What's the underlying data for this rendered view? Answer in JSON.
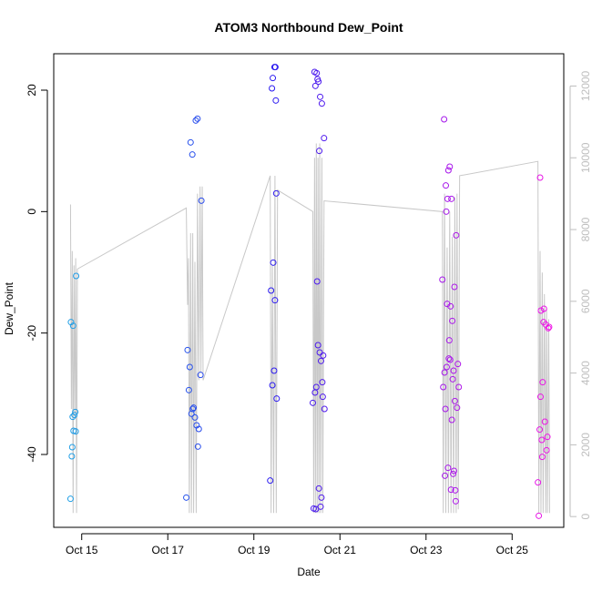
{
  "chart_data": {
    "type": "scatter",
    "title": "ATOM3 Northbound Dew_Point",
    "xlabel": "Date",
    "ylabel": "Dew_Point",
    "y2label": "",
    "xlim": [
      14.35,
      26.2
    ],
    "ylim": [
      -52,
      26
    ],
    "y2lim": [
      -300,
      12900
    ],
    "x_ticks": [
      {
        "value": 15,
        "label": "Oct 15"
      },
      {
        "value": 17,
        "label": "Oct 17"
      },
      {
        "value": 19,
        "label": "Oct 19"
      },
      {
        "value": 21,
        "label": "Oct 21"
      },
      {
        "value": 23,
        "label": "Oct 23"
      },
      {
        "value": 25,
        "label": "Oct 25"
      }
    ],
    "y_ticks": [
      -40,
      -20,
      0,
      20
    ],
    "y2_ticks": [
      0,
      2000,
      4000,
      6000,
      8000,
      10000,
      12000
    ],
    "colors": {
      "points_start": "#1fa0e6",
      "points_mid": "#2a1af0",
      "points_end": "#f014e6",
      "line": "#c8c8c8",
      "y2_axis": "#bebebe",
      "frame": "#000000"
    },
    "series": [
      {
        "name": "Dew_Point",
        "type": "scatter",
        "axis": "left",
        "points": [
          [
            14.74,
            -47.3
          ],
          [
            14.75,
            -18.2
          ],
          [
            14.77,
            -40.3
          ],
          [
            14.78,
            -38.8
          ],
          [
            14.79,
            -33.8
          ],
          [
            14.8,
            -18.8
          ],
          [
            14.81,
            -36.1
          ],
          [
            14.83,
            -33.5
          ],
          [
            14.85,
            -33.0
          ],
          [
            14.86,
            -36.2
          ],
          [
            14.87,
            -10.6
          ],
          [
            17.43,
            -47.1
          ],
          [
            17.46,
            -22.8
          ],
          [
            17.49,
            -29.4
          ],
          [
            17.51,
            -25.6
          ],
          [
            17.53,
            11.4
          ],
          [
            17.55,
            -33.3
          ],
          [
            17.57,
            9.4
          ],
          [
            17.58,
            -32.5
          ],
          [
            17.6,
            -32.3
          ],
          [
            17.63,
            -33.9
          ],
          [
            17.65,
            15.0
          ],
          [
            17.67,
            -35.2
          ],
          [
            17.69,
            15.3
          ],
          [
            17.7,
            -38.7
          ],
          [
            17.72,
            -35.8
          ],
          [
            17.76,
            -26.9
          ],
          [
            17.78,
            1.8
          ],
          [
            19.38,
            -44.3
          ],
          [
            19.4,
            -13.0
          ],
          [
            19.42,
            20.3
          ],
          [
            19.43,
            -28.6
          ],
          [
            19.44,
            22.0
          ],
          [
            19.45,
            -8.4
          ],
          [
            19.47,
            -26.2
          ],
          [
            19.48,
            23.8
          ],
          [
            19.49,
            -14.6
          ],
          [
            19.5,
            23.8
          ],
          [
            19.51,
            18.3
          ],
          [
            19.52,
            3.0
          ],
          [
            19.53,
            -30.8
          ],
          [
            20.37,
            -31.5
          ],
          [
            20.39,
            -48.9
          ],
          [
            20.41,
            23.0
          ],
          [
            20.42,
            -29.8
          ],
          [
            20.43,
            20.7
          ],
          [
            20.44,
            -49.0
          ],
          [
            20.45,
            -28.9
          ],
          [
            20.46,
            22.8
          ],
          [
            20.47,
            -11.5
          ],
          [
            20.48,
            21.8
          ],
          [
            20.49,
            -22.0
          ],
          [
            20.5,
            21.4
          ],
          [
            20.51,
            -45.6
          ],
          [
            20.52,
            10.0
          ],
          [
            20.53,
            -23.2
          ],
          [
            20.54,
            18.9
          ],
          [
            20.55,
            -48.6
          ],
          [
            20.56,
            -24.6
          ],
          [
            20.57,
            -47.1
          ],
          [
            20.58,
            17.8
          ],
          [
            20.59,
            -28.1
          ],
          [
            20.6,
            -30.5
          ],
          [
            20.61,
            -23.7
          ],
          [
            20.63,
            12.1
          ],
          [
            20.64,
            -32.5
          ],
          [
            23.38,
            -11.2
          ],
          [
            23.4,
            -28.9
          ],
          [
            23.42,
            15.2
          ],
          [
            23.43,
            -26.5
          ],
          [
            23.44,
            -43.5
          ],
          [
            23.45,
            -32.5
          ],
          [
            23.46,
            4.3
          ],
          [
            23.47,
            0.0
          ],
          [
            23.48,
            -25.6
          ],
          [
            23.49,
            -15.2
          ],
          [
            23.5,
            2.1
          ],
          [
            23.51,
            -42.2
          ],
          [
            23.52,
            6.8
          ],
          [
            23.53,
            -24.2
          ],
          [
            23.54,
            -21.2
          ],
          [
            23.55,
            7.4
          ],
          [
            23.56,
            -24.4
          ],
          [
            23.57,
            -15.6
          ],
          [
            23.58,
            -45.8
          ],
          [
            23.59,
            2.1
          ],
          [
            23.6,
            -34.3
          ],
          [
            23.61,
            -18.0
          ],
          [
            23.62,
            -27.6
          ],
          [
            23.63,
            -43.2
          ],
          [
            23.64,
            -26.2
          ],
          [
            23.65,
            -42.7
          ],
          [
            23.66,
            -12.4
          ],
          [
            23.67,
            -31.2
          ],
          [
            23.68,
            -45.9
          ],
          [
            23.69,
            -47.7
          ],
          [
            23.7,
            -3.9
          ],
          [
            23.72,
            -32.3
          ],
          [
            23.74,
            -25.1
          ],
          [
            23.76,
            -28.9
          ],
          [
            25.6,
            -44.6
          ],
          [
            25.62,
            -50.1
          ],
          [
            25.64,
            -35.9
          ],
          [
            25.65,
            5.6
          ],
          [
            25.66,
            -30.5
          ],
          [
            25.67,
            -16.3
          ],
          [
            25.69,
            -37.6
          ],
          [
            25.7,
            -40.4
          ],
          [
            25.71,
            -28.1
          ],
          [
            25.73,
            -18.2
          ],
          [
            25.74,
            -16.0
          ],
          [
            25.76,
            -34.6
          ],
          [
            25.78,
            -18.6
          ],
          [
            25.8,
            -39.3
          ],
          [
            25.82,
            -37.1
          ],
          [
            25.84,
            -19.2
          ],
          [
            25.86,
            -19.0
          ]
        ]
      },
      {
        "name": "Secondary",
        "type": "line",
        "axis": "right",
        "segments": [
          [
            [
              14.74,
              8700
            ],
            [
              14.76,
              3000
            ],
            [
              14.78,
              7400
            ],
            [
              14.8,
              100
            ],
            [
              14.82,
              7000
            ],
            [
              14.84,
              2800
            ],
            [
              14.86,
              7200
            ],
            [
              14.88,
              100
            ],
            [
              14.9,
              6900
            ],
            [
              17.43,
              8600
            ],
            [
              17.46,
              5900
            ],
            [
              17.48,
              7200
            ],
            [
              17.5,
              100
            ],
            [
              17.53,
              7900
            ],
            [
              17.55,
              100
            ],
            [
              17.58,
              7900
            ],
            [
              17.6,
              100
            ],
            [
              17.63,
              7100
            ],
            [
              17.66,
              100
            ],
            [
              17.69,
              9000
            ],
            [
              17.72,
              3800
            ],
            [
              17.75,
              9200
            ],
            [
              17.77,
              4000
            ],
            [
              17.8,
              9200
            ],
            [
              17.82,
              3800
            ],
            [
              19.38,
              9500
            ],
            [
              19.4,
              100
            ],
            [
              19.43,
              7000
            ],
            [
              19.46,
              100
            ],
            [
              19.49,
              9500
            ],
            [
              19.52,
              100
            ],
            [
              19.55,
              9100
            ],
            [
              20.37,
              8500
            ],
            [
              20.39,
              100
            ],
            [
              20.41,
              10000
            ],
            [
              20.43,
              100
            ],
            [
              20.45,
              10400
            ],
            [
              20.47,
              100
            ],
            [
              20.49,
              10000
            ],
            [
              20.51,
              100
            ],
            [
              20.53,
              10400
            ],
            [
              20.55,
              100
            ],
            [
              20.58,
              10000
            ],
            [
              20.6,
              100
            ],
            [
              20.63,
              8800
            ],
            [
              23.38,
              8500
            ],
            [
              23.4,
              100
            ],
            [
              23.43,
              9000
            ],
            [
              23.46,
              100
            ],
            [
              23.49,
              7500
            ],
            [
              23.52,
              100
            ],
            [
              23.55,
              8500
            ],
            [
              23.58,
              100
            ],
            [
              23.61,
              7800
            ],
            [
              23.64,
              100
            ],
            [
              23.67,
              8900
            ],
            [
              23.7,
              100
            ],
            [
              23.72,
              9000
            ],
            [
              23.75,
              200
            ],
            [
              23.78,
              9500
            ],
            [
              25.6,
              9900
            ],
            [
              25.62,
              100
            ],
            [
              25.65,
              7400
            ],
            [
              25.67,
              100
            ],
            [
              25.7,
              6800
            ],
            [
              25.72,
              100
            ],
            [
              25.75,
              6200
            ],
            [
              25.78,
              100
            ],
            [
              25.8,
              5800
            ],
            [
              25.82,
              100
            ],
            [
              25.85,
              5500
            ],
            [
              25.87,
              100
            ]
          ]
        ]
      }
    ]
  }
}
